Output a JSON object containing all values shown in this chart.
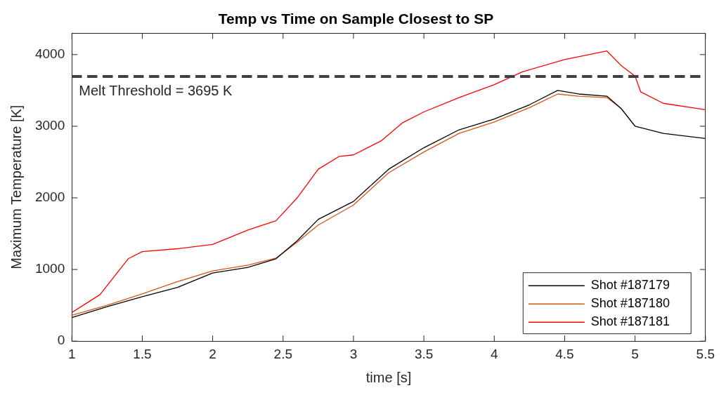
{
  "chart_data": {
    "type": "line",
    "title": "Temp vs Time on Sample Closest to SP",
    "xlabel": "time [s]",
    "ylabel": "Maximum Temperature [K]",
    "xlim": [
      1,
      5.5
    ],
    "xticks": [
      1,
      1.5,
      2,
      2.5,
      3,
      3.5,
      4,
      4.5,
      5,
      5.5
    ],
    "ylim": [
      0,
      4300
    ],
    "yticks": [
      0,
      1000,
      2000,
      3000,
      4000
    ],
    "grid": false,
    "legend": "bottom right",
    "marker": "none",
    "line_style": "solid",
    "ref_lines": [
      {
        "axis": "y",
        "value": 3695,
        "label": "Melt Threshold = 3695 K",
        "color": "#404040",
        "line_style": "dashed"
      }
    ],
    "series": [
      {
        "name": "Shot #187179",
        "color": "#000000",
        "x": [
          1,
          1.25,
          1.5,
          1.75,
          2,
          2.25,
          2.45,
          2.6,
          2.75,
          3,
          3.25,
          3.5,
          3.75,
          4,
          4.25,
          4.45,
          4.6,
          4.8,
          4.9,
          5,
          5.2,
          5.5
        ],
        "values": [
          330,
          480,
          620,
          750,
          950,
          1030,
          1150,
          1400,
          1700,
          1950,
          2400,
          2700,
          2950,
          3100,
          3300,
          3500,
          3450,
          3420,
          3250,
          3000,
          2900,
          2830
        ]
      },
      {
        "name": "Shot #187180",
        "color": "#d95319",
        "x": [
          1,
          1.25,
          1.5,
          1.75,
          2,
          2.25,
          2.45,
          2.6,
          2.75,
          3,
          3.25,
          3.5,
          3.75,
          4,
          4.25,
          4.45,
          4.6,
          4.8,
          4.9,
          5
        ],
        "values": [
          360,
          500,
          660,
          830,
          980,
          1060,
          1160,
          1380,
          1620,
          1900,
          2350,
          2640,
          2900,
          3060,
          3260,
          3450,
          3420,
          3400,
          3250,
          3000
        ]
      },
      {
        "name": "Shot #187181",
        "color": "#ff0000",
        "x": [
          1,
          1.2,
          1.4,
          1.5,
          1.75,
          2,
          2.25,
          2.45,
          2.6,
          2.75,
          2.9,
          3,
          3.2,
          3.35,
          3.5,
          3.75,
          4,
          4.2,
          4.5,
          4.8,
          4.9,
          5,
          5.04,
          5.2,
          5.5
        ],
        "values": [
          400,
          650,
          1150,
          1250,
          1290,
          1350,
          1550,
          1680,
          2000,
          2400,
          2580,
          2600,
          2800,
          3050,
          3200,
          3400,
          3580,
          3760,
          3930,
          4050,
          3850,
          3700,
          3480,
          3320,
          3230
        ]
      }
    ]
  }
}
